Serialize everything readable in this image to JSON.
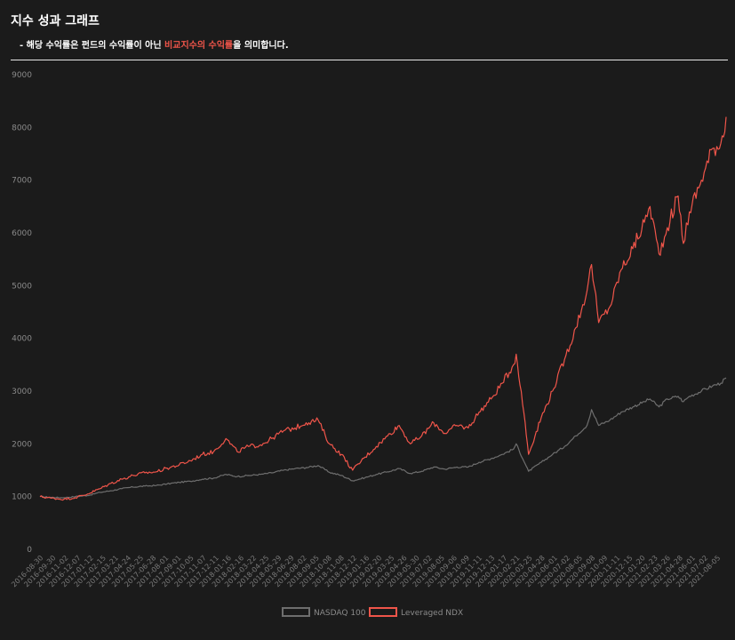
{
  "header": {
    "title": "지수 성과 그래프",
    "subtitle_prefix": "- 해당 수익률은 펀드의 수익률이 아닌 ",
    "subtitle_highlight": "비교지수의 수익률",
    "subtitle_suffix": "을 의미합니다."
  },
  "colors": {
    "background": "#1b1b1b",
    "nasdaq": "#6e6e6e",
    "leveraged": "#f0554a",
    "highlight": "#f0554a"
  },
  "chart_data": {
    "type": "line",
    "title": "",
    "xlabel": "",
    "ylabel": "",
    "ylim": [
      0,
      9000
    ],
    "yticks": [
      0,
      1000,
      2000,
      3000,
      4000,
      5000,
      6000,
      7000,
      8000,
      9000
    ],
    "grid": false,
    "legend": "bottom-center",
    "x": [
      "2016-08-30",
      "2016-09-30",
      "2016-11-02",
      "2016-12-02",
      "2017-01-04",
      "2017-02-06",
      "2017-03-07",
      "2017-04-05",
      "2017-05-05",
      "2017-06-06",
      "2017-07-06",
      "2017-08-04",
      "2017-09-05",
      "2017-10-05",
      "2017-11-06",
      "2017-12-06",
      "2018-01-08",
      "2018-02-07",
      "2018-03-09",
      "2018-04-10",
      "2018-05-10",
      "2018-06-11",
      "2018-07-11",
      "2018-08-10",
      "2018-09-11",
      "2018-10-11",
      "2018-11-12",
      "2018-12-12",
      "2019-01-14",
      "2019-02-13",
      "2019-03-15",
      "2019-04-15",
      "2019-05-15",
      "2019-06-14",
      "2019-07-16",
      "2019-08-15",
      "2019-09-16",
      "2019-10-16",
      "2019-11-14",
      "2019-12-16",
      "2020-01-15",
      "2020-02-14",
      "2020-02-21",
      "2020-03-16",
      "2020-03-25",
      "2020-04-28",
      "2020-05-28",
      "2020-06-29",
      "2020-07-29",
      "2020-08-28",
      "2020-09-09",
      "2020-09-28",
      "2020-10-28",
      "2020-11-27",
      "2020-12-28",
      "2021-01-28",
      "2021-02-12",
      "2021-03-08",
      "2021-03-30",
      "2021-04-28",
      "2021-05-12",
      "2021-05-28",
      "2021-06-29",
      "2021-07-29",
      "2021-08-20",
      "2021-09-03"
    ],
    "series": [
      {
        "name": "NASDAQ 100",
        "color": "#6e6e6e",
        "values": [
          1000,
          985,
          980,
          1000,
          1020,
          1080,
          1110,
          1150,
          1180,
          1200,
          1210,
          1240,
          1270,
          1290,
          1330,
          1350,
          1420,
          1380,
          1400,
          1420,
          1450,
          1500,
          1530,
          1550,
          1590,
          1460,
          1400,
          1300,
          1360,
          1420,
          1470,
          1530,
          1440,
          1480,
          1560,
          1520,
          1560,
          1560,
          1650,
          1720,
          1800,
          1900,
          2000,
          1620,
          1480,
          1650,
          1800,
          1950,
          2150,
          2350,
          2650,
          2350,
          2450,
          2600,
          2700,
          2800,
          2850,
          2700,
          2850,
          2900,
          2800,
          2900,
          3000,
          3100,
          3150,
          3250
        ]
      },
      {
        "name": "Leveraged NDX",
        "color": "#f0554a",
        "values": [
          1000,
          970,
          950,
          980,
          1050,
          1150,
          1250,
          1330,
          1400,
          1450,
          1470,
          1540,
          1600,
          1680,
          1800,
          1850,
          2100,
          1850,
          1950,
          1980,
          2100,
          2250,
          2300,
          2400,
          2450,
          2000,
          1800,
          1500,
          1750,
          1950,
          2150,
          2350,
          2000,
          2150,
          2400,
          2200,
          2350,
          2300,
          2600,
          2850,
          3150,
          3500,
          3700,
          2400,
          1800,
          2500,
          3000,
          3600,
          4200,
          4900,
          5400,
          4300,
          4600,
          5300,
          5700,
          6200,
          6500,
          5600,
          6100,
          6700,
          5800,
          6400,
          7000,
          7600,
          7700,
          8200
        ]
      }
    ]
  },
  "x_tick_labels": [
    "2016-08-30",
    "2016-09-30",
    "2016-11-02",
    "2016-12-07",
    "2017-01-12",
    "2017-02-15",
    "2017-03-21",
    "2017-04-24",
    "2017-05-25",
    "2017-06-28",
    "2017-08-01",
    "2017-09-01",
    "2017-10-05",
    "2017-11-07",
    "2017-12-11",
    "2018-01-16",
    "2018-02-16",
    "2018-03-22",
    "2018-04-25",
    "2018-05-29",
    "2018-06-29",
    "2018-08-02",
    "2018-09-05",
    "2018-10-08",
    "2018-11-08",
    "2018-12-12",
    "2019-01-16",
    "2019-02-20",
    "2019-03-25",
    "2019-04-26",
    "2019-05-30",
    "2019-07-02",
    "2019-08-05",
    "2019-09-06",
    "2019-10-09",
    "2019-11-11",
    "2019-12-13",
    "2020-01-17",
    "2020-02-21",
    "2020-03-25",
    "2020-04-28",
    "2020-06-01",
    "2020-07-02",
    "2020-08-05",
    "2020-09-08",
    "2020-10-09",
    "2020-11-11",
    "2020-12-15",
    "2021-01-20",
    "2021-02-23",
    "2021-03-26",
    "2021-04-28",
    "2021-06-01",
    "2021-07-02",
    "2021-08-05"
  ],
  "legend": {
    "nasdaq_label": "NASDAQ 100",
    "leveraged_label": "Leveraged NDX"
  }
}
